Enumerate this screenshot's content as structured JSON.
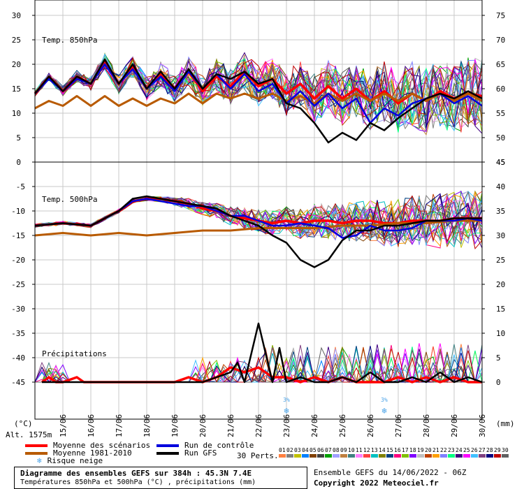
{
  "chart_data": [
    {
      "name": "temp850",
      "type": "line",
      "title": "Temp. 850hPa",
      "left_axis": {
        "ticks": [
          30,
          25,
          20,
          15,
          10,
          5,
          0
        ],
        "range": [
          0,
          30
        ]
      },
      "right_axis": {
        "ticks": [
          75,
          70,
          65,
          60,
          55,
          50,
          45
        ],
        "range": [
          45,
          75
        ]
      },
      "series": [
        {
          "name": "Moyenne des scénarios",
          "color": "#ff0000",
          "days": [
            0,
            0.5,
            1,
            1.5,
            2,
            2.5,
            3,
            3.5,
            4,
            4.5,
            5,
            5.5,
            6,
            6.5,
            7,
            7.5,
            8,
            8.5,
            9,
            9.5,
            10,
            10.5,
            11,
            11.5,
            12,
            12.5,
            13,
            13.5,
            14,
            14.5,
            15,
            15.5,
            16
          ],
          "values": [
            14,
            17.5,
            14.5,
            17.5,
            16,
            20.5,
            16,
            19.5,
            15,
            18,
            15,
            18.5,
            14.5,
            17.5,
            15.5,
            18.5,
            15.5,
            17,
            14,
            16,
            13,
            15.5,
            13,
            15,
            12.5,
            14.5,
            12,
            14,
            12.5,
            14.5,
            13,
            14,
            13.5
          ]
        },
        {
          "name": "Moyenne 1981-2010",
          "color": "#b85a00",
          "days": [
            0,
            0.5,
            1,
            1.5,
            2,
            2.5,
            3,
            3.5,
            4,
            4.5,
            5,
            5.5,
            6,
            6.5,
            7,
            7.5,
            8,
            8.5,
            9,
            9.5,
            10,
            10.5,
            11,
            11.5,
            12,
            12.5,
            13,
            13.5,
            14,
            14.5,
            15,
            15.5,
            16
          ],
          "values": [
            11,
            12.5,
            11.5,
            13.5,
            11.5,
            13.5,
            11.5,
            13,
            11.5,
            13,
            12,
            14,
            12,
            14,
            13,
            14,
            13,
            14,
            12.5,
            13.5,
            12,
            14,
            12.5,
            14,
            12.5,
            14,
            12.5,
            14,
            12.5,
            14,
            12.5,
            14,
            12.5
          ]
        },
        {
          "name": "Run de contrôle",
          "color": "#0000dd",
          "days": [
            0,
            0.5,
            1,
            1.5,
            2,
            2.5,
            3,
            3.5,
            4,
            4.5,
            5,
            5.5,
            6,
            6.5,
            7,
            7.5,
            8,
            8.5,
            9,
            9.5,
            10,
            10.5,
            11,
            11.5,
            12,
            12.5,
            13,
            13.5,
            14,
            14.5,
            15,
            15.5,
            16
          ],
          "values": [
            14,
            17,
            14.5,
            17,
            16,
            20,
            16,
            19,
            15,
            17.5,
            14.5,
            18.5,
            15,
            18,
            15,
            18,
            14.5,
            16,
            12,
            14.5,
            11.5,
            14,
            11,
            13,
            8,
            11,
            9.5,
            12,
            13,
            14,
            12,
            13.5,
            11.5
          ]
        },
        {
          "name": "Run GFS",
          "color": "#000000",
          "days": [
            0,
            0.5,
            1,
            1.5,
            2,
            2.5,
            3,
            3.5,
            4,
            4.5,
            5,
            5.5,
            6,
            6.5,
            7,
            7.5,
            8,
            8.5,
            9,
            9.5,
            10,
            10.5,
            11,
            11.5,
            12,
            12.5,
            13,
            13.5,
            14,
            14.5,
            15,
            15.5,
            16
          ],
          "values": [
            14,
            17.5,
            14.5,
            17.5,
            16,
            21,
            16,
            20,
            15,
            18.5,
            15,
            19,
            15,
            18,
            17,
            18.5,
            16,
            17,
            12,
            11,
            8,
            4,
            6,
            4.5,
            8,
            6.5,
            9,
            11,
            13,
            14,
            13,
            14.5,
            13
          ]
        }
      ]
    },
    {
      "name": "temp500",
      "type": "line",
      "title": "Temp. 500hPa",
      "left_axis": {
        "ticks": [
          -5,
          -10,
          -15,
          -20,
          -25,
          -30,
          -35,
          -40,
          -45
        ],
        "range": [
          -45,
          -5
        ]
      },
      "series": [
        {
          "name": "Moyenne des scénarios",
          "color": "#ff0000",
          "days": [
            0,
            1,
            2,
            3,
            3.5,
            4,
            4.5,
            5,
            5.5,
            6,
            6.5,
            7,
            7.5,
            8,
            8.5,
            9,
            9.5,
            10,
            10.5,
            11,
            11.5,
            12,
            12.5,
            13,
            13.5,
            14,
            14.5,
            15,
            15.5,
            16
          ],
          "values": [
            -13,
            -12.5,
            -13,
            -10,
            -8,
            -7.5,
            -7.5,
            -8,
            -8.5,
            -9.5,
            -10,
            -11,
            -11.5,
            -12,
            -12.5,
            -12,
            -12.5,
            -12,
            -12,
            -12.5,
            -12,
            -12,
            -12.5,
            -12.5,
            -12,
            -12,
            -12,
            -11.5,
            -11.5,
            -11.5
          ]
        },
        {
          "name": "Moyenne 1981-2010",
          "color": "#b85a00",
          "days": [
            0,
            1,
            2,
            3,
            4,
            5,
            6,
            7,
            8,
            9,
            10,
            11,
            12,
            13,
            14,
            15,
            16
          ],
          "values": [
            -15,
            -14.5,
            -15,
            -14.5,
            -15,
            -14.5,
            -14,
            -14,
            -13.5,
            -13.5,
            -13.5,
            -13,
            -13,
            -12.5,
            -12.5,
            -12,
            -12
          ]
        },
        {
          "name": "Run de contrôle",
          "color": "#0000dd",
          "days": [
            0,
            1,
            2,
            3,
            3.5,
            4,
            4.5,
            5,
            5.5,
            6,
            6.5,
            7,
            7.5,
            8,
            8.5,
            9,
            9.5,
            10,
            10.5,
            11,
            11.5,
            12,
            12.5,
            13,
            13.5,
            14,
            14.5,
            15,
            15.5,
            16
          ],
          "values": [
            -13,
            -12.5,
            -13,
            -10,
            -8,
            -7.5,
            -8,
            -8.5,
            -9,
            -9,
            -10,
            -11,
            -11,
            -12,
            -13,
            -13,
            -12.5,
            -13,
            -13.5,
            -15.5,
            -15,
            -13,
            -14,
            -14,
            -13.5,
            -12,
            -12,
            -12,
            -11.5,
            -12
          ]
        },
        {
          "name": "Run GFS",
          "color": "#000000",
          "days": [
            0,
            1,
            2,
            3,
            3.5,
            4,
            4.5,
            5,
            5.5,
            6,
            6.5,
            7,
            7.5,
            8,
            8.5,
            9,
            9.5,
            10,
            10.5,
            11,
            11.5,
            12,
            12.5,
            13,
            13.5,
            14,
            14.5,
            15,
            15.5,
            16
          ],
          "values": [
            -13,
            -12.5,
            -13,
            -10,
            -7.5,
            -7,
            -7.5,
            -8,
            -8.5,
            -9,
            -9.5,
            -11,
            -12,
            -13,
            -15,
            -16.5,
            -20,
            -21.5,
            -20,
            -16,
            -14,
            -14,
            -13,
            -13,
            -12.5,
            -12,
            -12,
            -11.5,
            -11.5,
            -11.5
          ]
        }
      ]
    },
    {
      "name": "precip",
      "type": "line",
      "title": "Précipitations",
      "right_axis": {
        "ticks": [
          45,
          40,
          35,
          30,
          25,
          20,
          15,
          10,
          5,
          0
        ],
        "unit": "(mm)"
      },
      "series": [
        {
          "name": "Moyenne des scénarios",
          "color": "#ff0000",
          "days": [
            0.25,
            0.5,
            0.75,
            1,
            1.5,
            1.75,
            2,
            2.5,
            3,
            3.5,
            4,
            4.5,
            5,
            5.5,
            6,
            6.5,
            7,
            7.5,
            8,
            8.5,
            9,
            9.5,
            10,
            10.5,
            11,
            11.5,
            12,
            12.5,
            13,
            13.5,
            14,
            14.5,
            15,
            15.5,
            16
          ],
          "values": [
            0,
            1,
            0,
            0,
            1,
            0,
            0,
            0,
            0,
            0,
            0,
            0,
            0,
            1,
            0,
            1,
            3,
            2,
            3,
            1,
            1,
            0,
            1,
            0,
            1,
            0,
            0,
            0,
            1,
            0,
            1,
            0,
            1,
            0,
            0
          ]
        },
        {
          "name": "Run GFS",
          "color": "#000000",
          "days": [
            0.25,
            1,
            2,
            3,
            4,
            4.5,
            5,
            5.5,
            6,
            6.5,
            7,
            7.25,
            7.5,
            8,
            8.5,
            8.75,
            9,
            9.5,
            10,
            10.5,
            11,
            11.5,
            12,
            12.5,
            13,
            13.5,
            14,
            14.5,
            15,
            15.5,
            16
          ],
          "values": [
            0,
            0,
            0,
            0,
            0,
            0,
            0,
            0,
            0,
            1,
            2,
            4,
            0,
            12,
            0,
            7,
            0,
            1,
            0,
            0,
            1,
            0,
            2,
            0,
            0,
            1,
            0,
            2,
            0,
            1,
            0
          ]
        }
      ]
    }
  ],
  "axis": {
    "left_unit": "(°C)",
    "right_unit": "(mm)",
    "altitude": "Alt. 1575m",
    "dates": [
      "15/06",
      "16/06",
      "17/06",
      "18/06",
      "19/06",
      "20/06",
      "21/06",
      "22/06",
      "23/06",
      "24/06",
      "25/06",
      "26/06",
      "27/06",
      "28/06",
      "29/06",
      "30/06"
    ]
  },
  "legend": {
    "mean": "Moyenne des scénarios",
    "clim": "Moyenne 1981-2010",
    "snow": "Risque neige",
    "control": "Run de contrôle",
    "gfs": "Run GFS",
    "perts_label": "30 Perts.",
    "pert_numbers": [
      "01",
      "02",
      "03",
      "04",
      "05",
      "06",
      "07",
      "08",
      "09",
      "10",
      "11",
      "12",
      "13",
      "14",
      "15",
      "16",
      "17",
      "18",
      "19",
      "20",
      "21",
      "22",
      "23",
      "24",
      "25",
      "26",
      "27",
      "28",
      "29",
      "30"
    ],
    "pert_colors": [
      "#ff8040",
      "#808080",
      "#c0c000",
      "#0080ff",
      "#804000",
      "#404040",
      "#00a000",
      "#a0a0ff",
      "#c08040",
      "#408080",
      "#ff80ff",
      "#ff4040",
      "#00c0c0",
      "#808000",
      "#004080",
      "#ff0080",
      "#80c000",
      "#8000ff",
      "#c0c0c0",
      "#c04000",
      "#ffa000",
      "#8080ff",
      "#00ff80",
      "#400080",
      "#ff00ff",
      "#40c0ff",
      "#804080",
      "#000080",
      "#c00000",
      "#606060"
    ]
  },
  "colors": {
    "mean": "#ff0000",
    "clim": "#b85a00",
    "control": "#0000dd",
    "gfs": "#000000",
    "snow": "#4aa3e8"
  },
  "footer": {
    "title": "Diagramme des ensembles GEFS sur 384h : 45.3N 7.4E",
    "subtitle": "Températures 850hPa et 500hPa (°C) , précipitations (mm)",
    "ensemble": "Ensemble GEFS du 14/06/2022 - 06Z",
    "copyright": "Copyright 2022 Meteociel.fr"
  },
  "snow_marks": [
    {
      "day": 9,
      "label": "3%"
    },
    {
      "day": 12.5,
      "label": "3%"
    }
  ]
}
